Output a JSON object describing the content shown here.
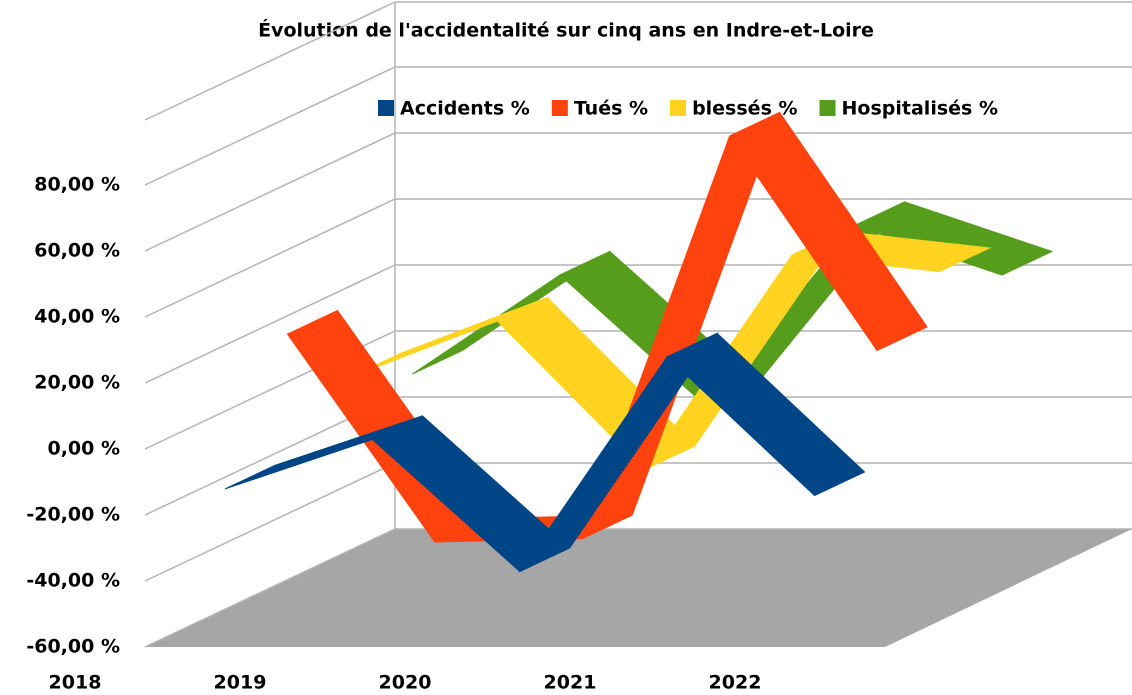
{
  "chart_data": {
    "type": "line3d",
    "title": "Évolution de l'accidentalité sur cinq ans en Indre-et-Loire",
    "categories": [
      "2018",
      "2019",
      "2020",
      "2021",
      "2022"
    ],
    "series": [
      {
        "name": "Accidents %",
        "color": "#004586",
        "values": [
          -13,
          2,
          -38,
          27,
          -15
        ]
      },
      {
        "name": "Tués %",
        "color": "#ff420e",
        "values": [
          25,
          -38,
          -37,
          85,
          20
        ]
      },
      {
        "name": "blessés %",
        "color": "#ffd320",
        "values": [
          3,
          20,
          -25,
          40,
          35
        ]
      },
      {
        "name": "Hospitalisés %",
        "color": "#579d1c",
        "values": [
          -5,
          25,
          -15,
          40,
          25
        ]
      }
    ],
    "ylim": [
      -60,
      80
    ],
    "yticks": [
      {
        "value": -60,
        "label": "-60,00 %"
      },
      {
        "value": -40,
        "label": "-40,00 %"
      },
      {
        "value": -20,
        "label": "-20,00 %"
      },
      {
        "value": 0,
        "label": "0,00 %"
      },
      {
        "value": 20,
        "label": "20,00 %"
      },
      {
        "value": 40,
        "label": "40,00 %"
      },
      {
        "value": 60,
        "label": "60,00 %"
      },
      {
        "value": 80,
        "label": "80,00 %"
      }
    ],
    "grid": true,
    "legend": "top"
  }
}
